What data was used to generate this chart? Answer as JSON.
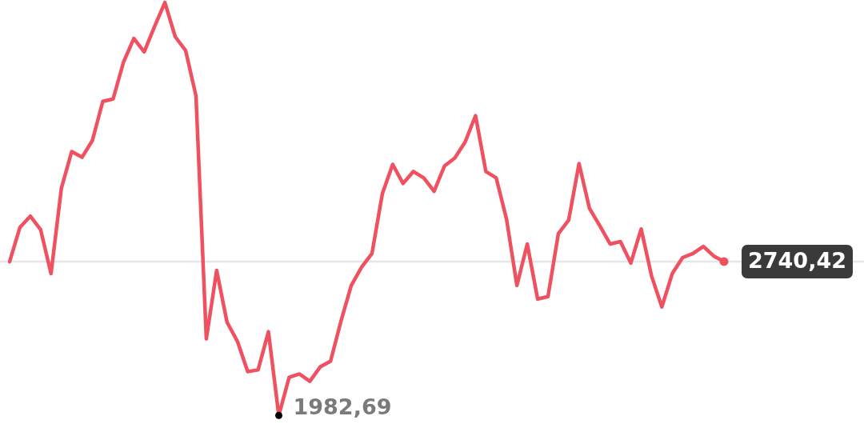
{
  "chart_data": {
    "type": "line",
    "categories": [
      null,
      null,
      null,
      null,
      null,
      null,
      null,
      null,
      null,
      null,
      null,
      null,
      null,
      null,
      null,
      null,
      null,
      null,
      null,
      null,
      null,
      null,
      null,
      null,
      null,
      null,
      null,
      null,
      null,
      null,
      null,
      null,
      null,
      null,
      null,
      null,
      null,
      null,
      null,
      null,
      null,
      null,
      null,
      null,
      null,
      null,
      null,
      null,
      null,
      null,
      null,
      null,
      null,
      null,
      null,
      null,
      null,
      null,
      null,
      null,
      null,
      null,
      null,
      null,
      null,
      null,
      null,
      null,
      null,
      null
    ],
    "series": [
      {
        "color": "#ef5160",
        "values": [
          2740,
          2909,
          2964,
          2897,
          2681,
          3101,
          3282,
          3254,
          3337,
          3529,
          3541,
          3722,
          3839,
          3773,
          3898,
          4016,
          3847,
          3780,
          3557,
          2360,
          2697,
          2442,
          2348,
          2199,
          2207,
          2395,
          1982.69,
          2171,
          2187,
          2151,
          2222,
          2250,
          2446,
          2623,
          2713,
          2780,
          3074,
          3219,
          3125,
          3184,
          3152,
          3086,
          3211,
          3250,
          3329,
          3459,
          3184,
          3152,
          2948,
          2623,
          2827,
          2556,
          2568,
          2878,
          2945,
          3223,
          3003,
          2917,
          2827,
          2839,
          2733,
          2901,
          2670,
          2517,
          2681,
          2760,
          2780,
          2815,
          2768,
          2740.42
        ],
        "value_labels": [
          null,
          null,
          null,
          null,
          null,
          null,
          null,
          null,
          null,
          null,
          null,
          null,
          null,
          null,
          null,
          null,
          null,
          null,
          null,
          null,
          null,
          null,
          null,
          null,
          null,
          null,
          "1982,69",
          null,
          null,
          null,
          null,
          null,
          null,
          null,
          null,
          null,
          null,
          null,
          null,
          null,
          null,
          null,
          null,
          null,
          null,
          null,
          null,
          null,
          null,
          null,
          null,
          null,
          null,
          null,
          null,
          null,
          null,
          null,
          null,
          null,
          null,
          null,
          null,
          null,
          null,
          null,
          null,
          null,
          null,
          "2740,42"
        ]
      }
    ],
    "ref_lines": [
      {
        "axis": "y",
        "value": 2740.42,
        "color": "#e6e6e6"
      }
    ],
    "tick_labels": false,
    "legend": false,
    "marker": "none",
    "line_style": "solid"
  }
}
